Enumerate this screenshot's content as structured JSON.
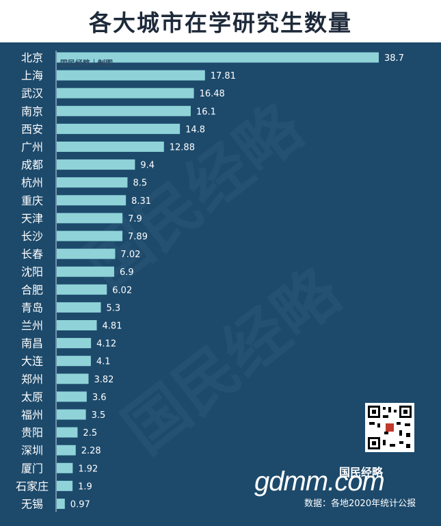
{
  "title": "各大城市在学研究生数量",
  "watermark_text": "国民经略",
  "chart_tag": "国民经略｜制图",
  "brand": "gdmm.com",
  "logo_text": "国民经略",
  "source": "数据：各地2020年统计公报",
  "colors": {
    "bar": "#8fd3d8",
    "background": "#1d4a6b",
    "label": "#ffffff"
  },
  "chart_data": {
    "type": "bar",
    "orientation": "horizontal",
    "title": "各大城市在学研究生数量",
    "categories": [
      "北京",
      "上海",
      "武汉",
      "南京",
      "西安",
      "广州",
      "成都",
      "杭州",
      "重庆",
      "天津",
      "长沙",
      "长春",
      "沈阳",
      "合肥",
      "青岛",
      "兰州",
      "南昌",
      "大连",
      "郑州",
      "太原",
      "福州",
      "贵阳",
      "深圳",
      "厦门",
      "石家庄",
      "无锡"
    ],
    "values": [
      38.7,
      17.81,
      16.48,
      16.1,
      14.8,
      12.88,
      9.4,
      8.5,
      8.31,
      7.9,
      7.89,
      7.02,
      6.9,
      6.02,
      5.3,
      4.81,
      4.12,
      4.1,
      3.82,
      3.6,
      3.5,
      2.5,
      2.28,
      1.92,
      1.9,
      0.97
    ],
    "value_labels": [
      "38.7",
      "17.81",
      "16.48",
      "16.1",
      "14.8",
      "12.88",
      "9.4",
      "8.5",
      "8.31",
      "7.9",
      "7.89",
      "7.02",
      "6.9",
      "6.02",
      "5.3",
      "4.81",
      "4.12",
      "4.1",
      "3.82",
      "3.6",
      "3.5",
      "2.5",
      "2.28",
      "1.92",
      "1.9",
      "0.97"
    ],
    "xlim": [
      0,
      38.7
    ],
    "grid": false,
    "legend": "none"
  }
}
